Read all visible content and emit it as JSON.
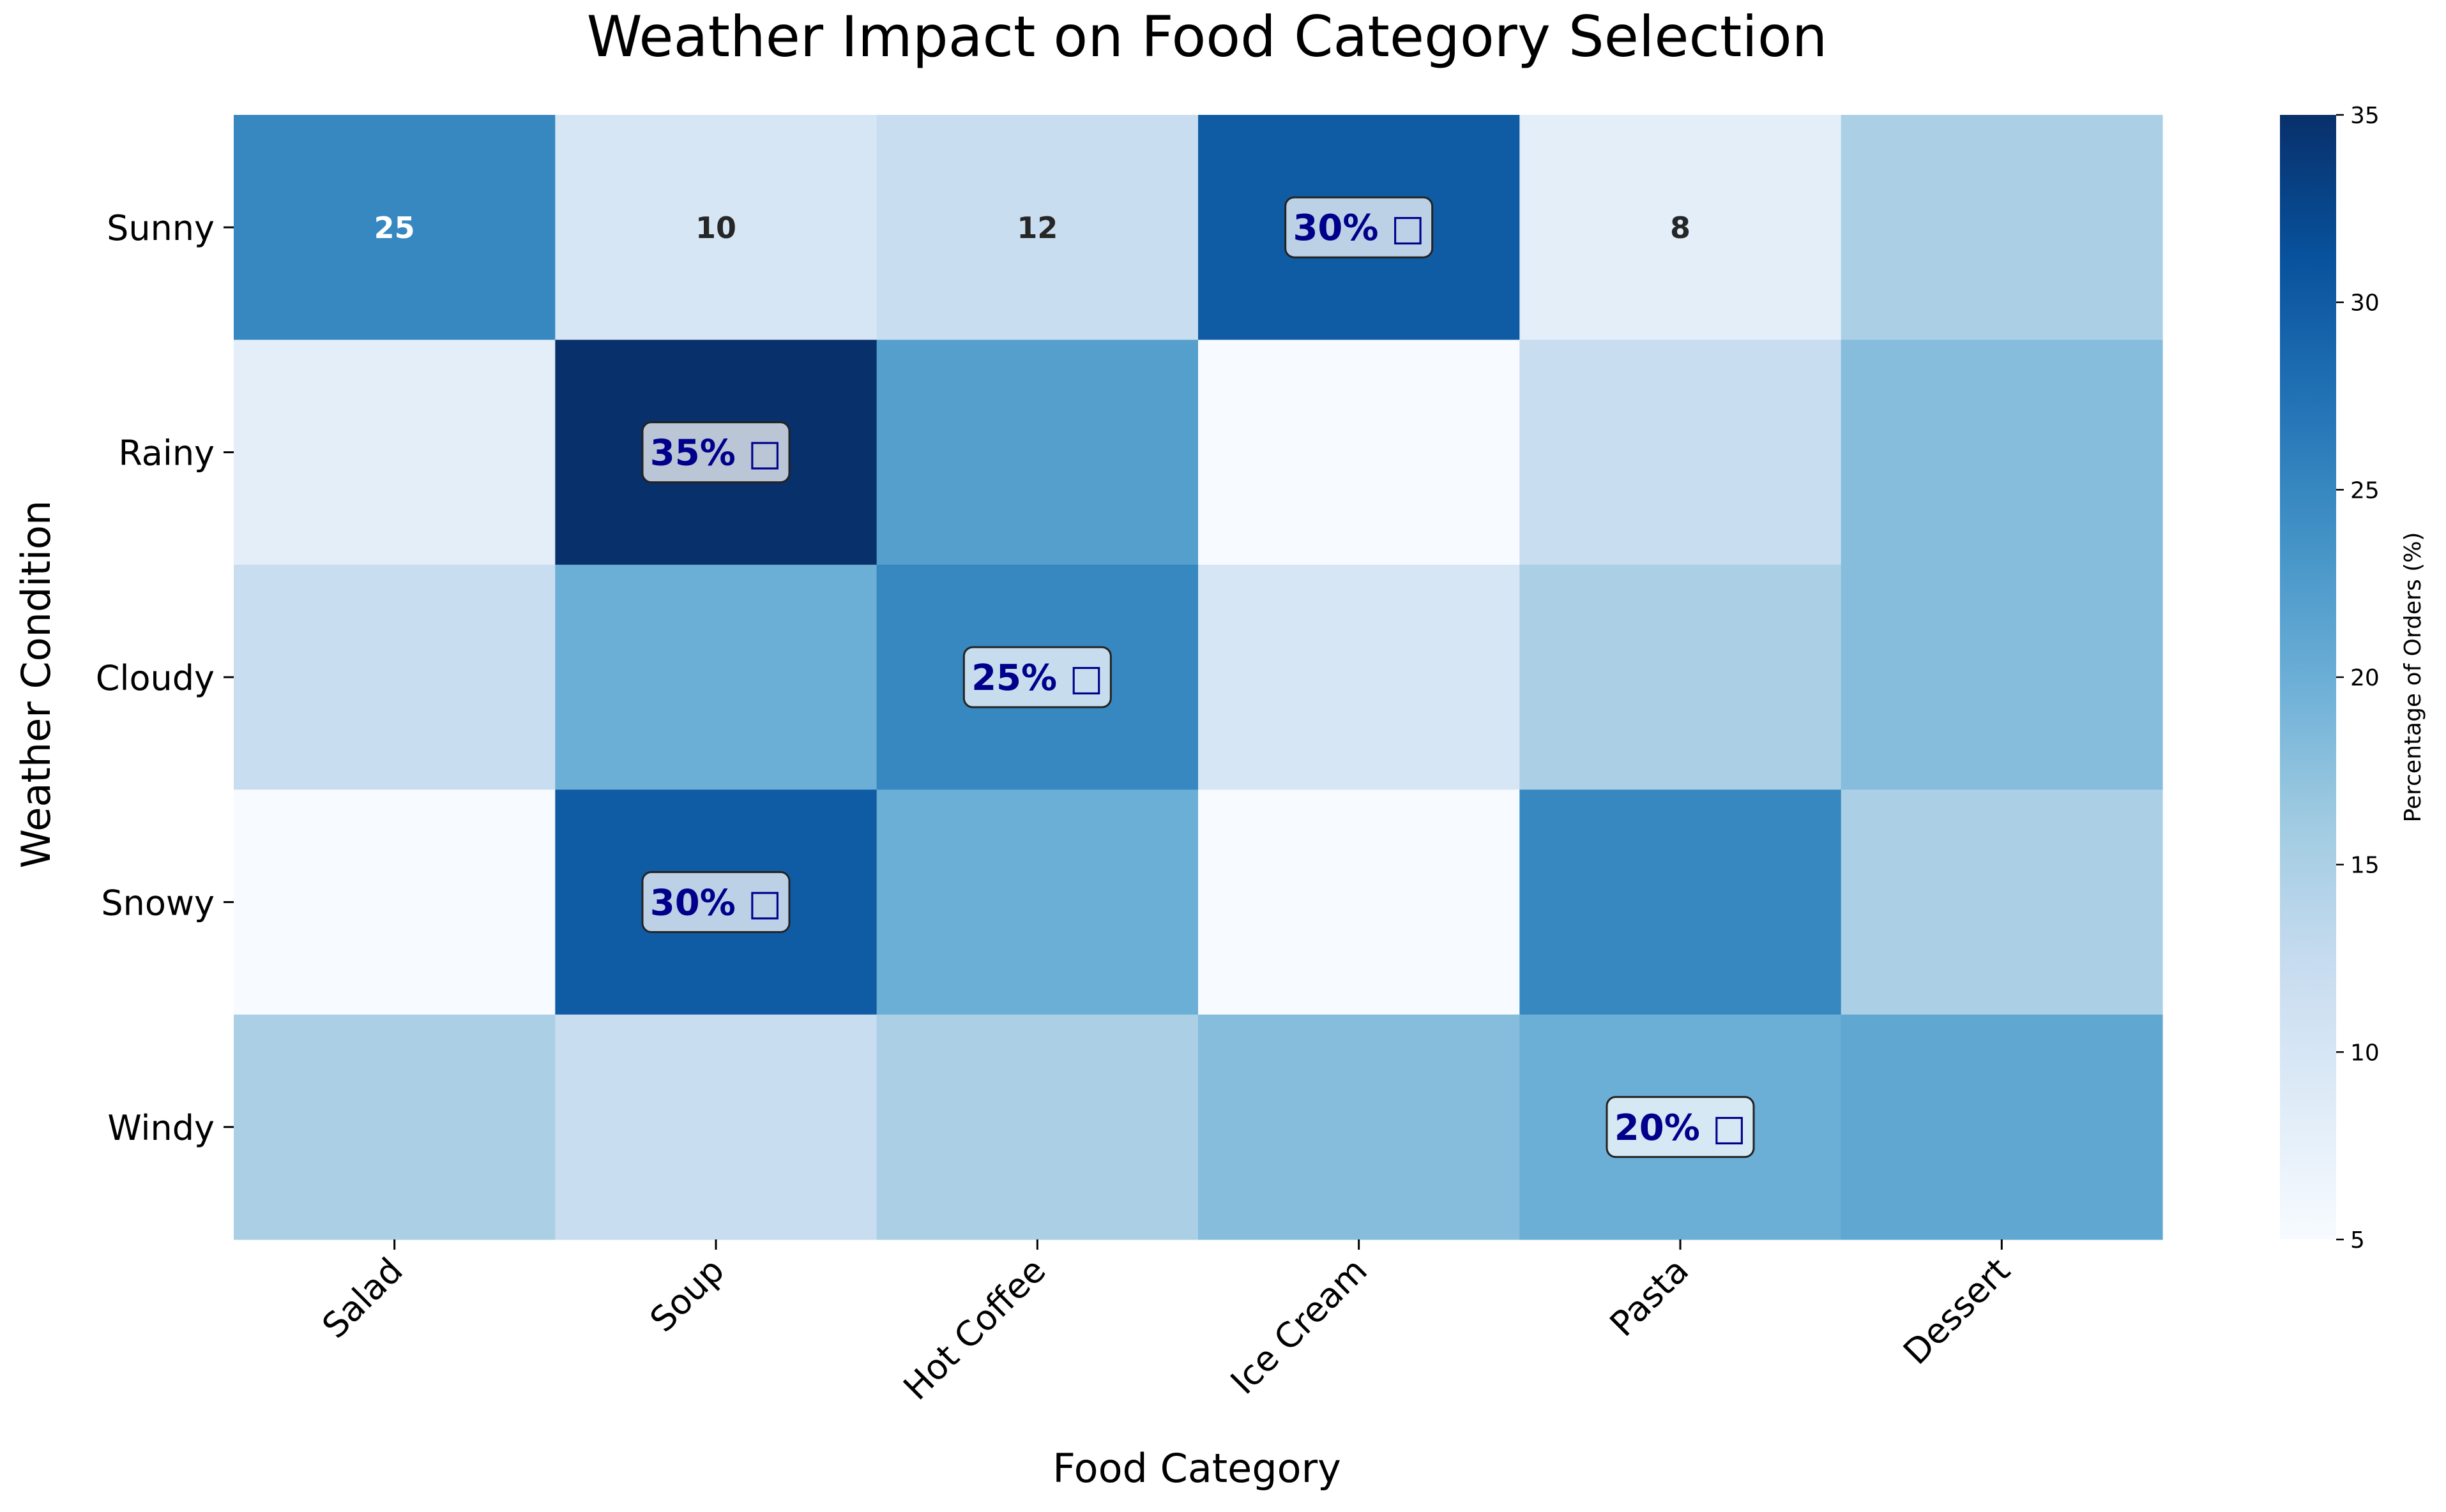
{
  "chart_data": {
    "type": "heatmap",
    "title": "Weather Impact on Food Category Selection",
    "xlabel": "Food Category",
    "ylabel": "Weather Condition",
    "x_categories": [
      "Salad",
      "Soup",
      "Hot Coffee",
      "Ice Cream",
      "Pasta",
      "Dessert"
    ],
    "y_categories": [
      "Sunny",
      "Rainy",
      "Cloudy",
      "Snowy",
      "Windy"
    ],
    "values": [
      [
        25,
        10,
        12,
        30,
        8,
        15
      ],
      [
        8,
        35,
        22,
        5,
        12,
        18
      ],
      [
        12,
        20,
        25,
        10,
        15,
        18
      ],
      [
        5,
        30,
        20,
        5,
        25,
        15
      ],
      [
        15,
        12,
        15,
        18,
        20,
        21
      ]
    ],
    "cell_labels": [
      [
        "25",
        "10",
        "12",
        "30% □",
        "8",
        ""
      ],
      [
        "",
        "35% □",
        "",
        "",
        "",
        ""
      ],
      [
        "",
        "",
        "25% □",
        "",
        "",
        ""
      ],
      [
        "",
        "30% □",
        "",
        "",
        "",
        ""
      ],
      [
        "",
        "",
        "",
        "",
        "20% □",
        ""
      ]
    ],
    "highlighted_cells": [
      [
        0,
        3
      ],
      [
        1,
        1
      ],
      [
        2,
        2
      ],
      [
        3,
        1
      ],
      [
        4,
        4
      ]
    ],
    "colorbar": {
      "label": "Percentage of Orders (%)",
      "min": 5,
      "max": 35,
      "ticks": [
        5,
        10,
        15,
        20,
        25,
        30,
        35
      ],
      "colormap": "Blues"
    },
    "colors": {
      "highlight_text": "#00008b",
      "highlight_box_border": "#222222",
      "dark_text": "#262626",
      "light_text": "#ffffff"
    }
  }
}
